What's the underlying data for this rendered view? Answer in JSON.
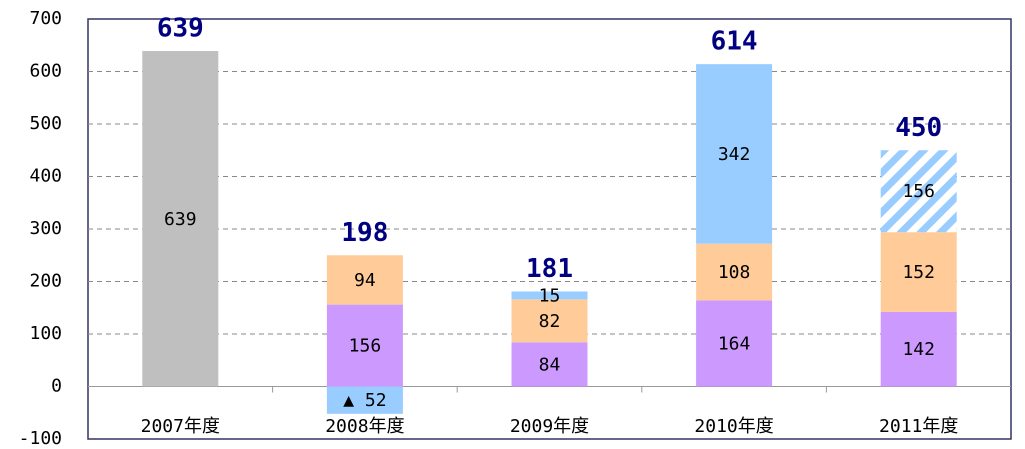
{
  "chart_data": {
    "type": "stacked_bar",
    "categories": [
      "2007年度",
      "2008年度",
      "2009年度",
      "2010年度",
      "2011年度"
    ],
    "series": [
      {
        "color": "#bfbfbf",
        "values": [
          639,
          null,
          null,
          null,
          null
        ]
      },
      {
        "color": "#cc99ff",
        "values": [
          null,
          156,
          84,
          164,
          142
        ]
      },
      {
        "color": "#ffcc99",
        "values": [
          null,
          94,
          82,
          108,
          152
        ]
      },
      {
        "color": "#99ccff",
        "values": [
          null,
          -52,
          15,
          342,
          null
        ],
        "value_labels": [
          null,
          "▲ 52",
          null,
          null,
          null
        ]
      },
      {
        "color": "#99ccff",
        "hatch": true,
        "values": [
          null,
          null,
          null,
          null,
          156
        ]
      }
    ],
    "totals": [
      639,
      198,
      181,
      614,
      450
    ],
    "ylim": [
      -100,
      700
    ],
    "yticks": [
      -100,
      0,
      100,
      200,
      300,
      400,
      500,
      600,
      700
    ],
    "grid": true
  }
}
